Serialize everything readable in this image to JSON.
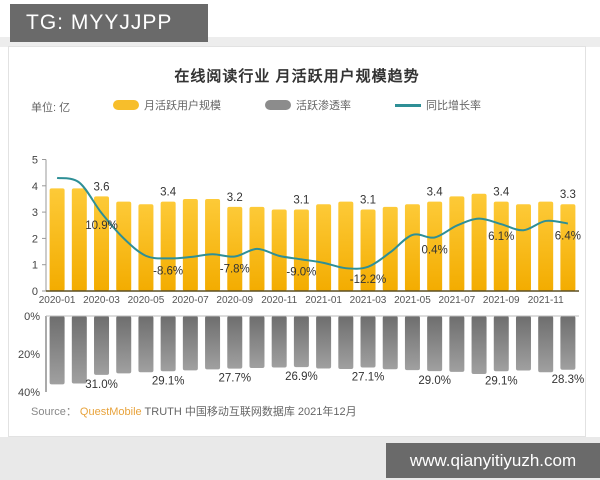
{
  "header": {
    "tag_text": "TG: MYYJJPP"
  },
  "watermark": {
    "site_url": "www.qianyitiyuzh.com"
  },
  "chart": {
    "title": "在线阅读行业 月活跃用户规模趋势",
    "unit_label": "单位: 亿",
    "legend": [
      {
        "label": "月活跃用户规模",
        "color": "#f7be2b",
        "type": "bar"
      },
      {
        "label": "活跃渗透率",
        "color": "#8c8c8c",
        "type": "bar"
      },
      {
        "label": "同比增长率",
        "color": "#2e8f96",
        "type": "line"
      }
    ],
    "source_prefix": "Source：",
    "source_brand": "QuestMobile",
    "source_rest": " TRUTH 中国移动互联网数据库 2021年12月"
  },
  "chart_data": {
    "type": "bar",
    "title": "在线阅读行业 月活跃用户规模趋势",
    "unit": "亿",
    "categories": [
      "2020-01",
      "2020-02",
      "2020-03",
      "2020-04",
      "2020-05",
      "2020-06",
      "2020-07",
      "2020-08",
      "2020-09",
      "2020-10",
      "2020-11",
      "2020-12",
      "2021-01",
      "2021-02",
      "2021-03",
      "2021-04",
      "2021-05",
      "2021-06",
      "2021-07",
      "2021-08",
      "2021-09",
      "2021-10",
      "2021-11",
      "2021-12"
    ],
    "x_tick_labels": [
      "2020-01",
      "2020-03",
      "2020-05",
      "2020-07",
      "2020-09",
      "2020-11",
      "2021-01",
      "2021-03",
      "2021-05",
      "2021-07",
      "2021-09",
      "2021-11"
    ],
    "top_axis_ticks": [
      "5",
      "4",
      "3",
      "2",
      "1",
      "0"
    ],
    "bottom_axis_ticks": [
      "0%",
      "20%",
      "40%"
    ],
    "top_ylim": [
      0,
      5
    ],
    "bottom_ylim_inverted_pct": [
      0,
      40
    ],
    "labeled_indices": [
      2,
      5,
      8,
      11,
      14,
      17,
      20,
      23
    ],
    "series": [
      {
        "name": "月活跃用户规模",
        "type": "bar",
        "unit": "亿",
        "values": [
          3.9,
          3.9,
          3.6,
          3.4,
          3.3,
          3.4,
          3.5,
          3.5,
          3.2,
          3.2,
          3.1,
          3.1,
          3.3,
          3.4,
          3.1,
          3.2,
          3.3,
          3.4,
          3.6,
          3.7,
          3.4,
          3.3,
          3.4,
          3.3
        ],
        "point_labels": [
          "3.6",
          "3.4",
          "3.2",
          "3.1",
          "3.1",
          "3.4",
          "3.4",
          "3.3"
        ]
      },
      {
        "name": "同比增长率",
        "type": "line",
        "unit": "%",
        "values": [
          26,
          24,
          10.9,
          0,
          -7.5,
          -8.6,
          -8.0,
          -6.8,
          -7.8,
          -4.5,
          -7.5,
          -9.0,
          -10.5,
          -12.8,
          -12.2,
          -6.0,
          1.5,
          0.4,
          5.5,
          8.5,
          6.1,
          3.5,
          7.5,
          6.4
        ],
        "point_labels": [
          "10.9%",
          "-8.6%",
          "-7.8%",
          "-9.0%",
          "-12.2%",
          "0.4%",
          "6.1%",
          "6.4%"
        ]
      },
      {
        "name": "活跃渗透率",
        "type": "bar",
        "unit": "%",
        "values": [
          36.0,
          35.5,
          31.0,
          30.2,
          29.6,
          29.1,
          28.6,
          28.1,
          27.7,
          27.4,
          27.1,
          26.9,
          27.6,
          27.9,
          27.1,
          28.0,
          28.5,
          29.0,
          29.4,
          30.5,
          29.1,
          28.7,
          29.6,
          28.3
        ],
        "point_labels": [
          "31.0%",
          "29.1%",
          "27.7%",
          "26.9%",
          "27.1%",
          "29.0%",
          "29.1%",
          "28.3%"
        ]
      }
    ],
    "legend_position": "top",
    "grid": false
  }
}
